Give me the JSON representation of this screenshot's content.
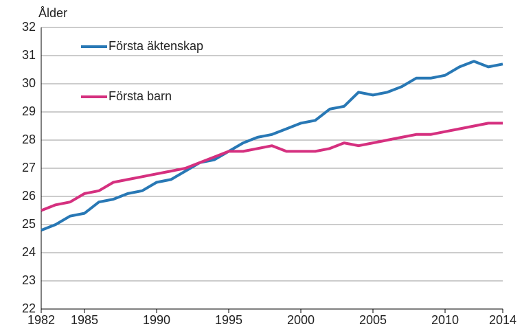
{
  "chart_data": {
    "type": "line",
    "ylabel": "Ålder",
    "x": [
      1982,
      1983,
      1984,
      1985,
      1986,
      1987,
      1988,
      1989,
      1990,
      1991,
      1992,
      1993,
      1994,
      1995,
      1996,
      1997,
      1998,
      1999,
      2000,
      2001,
      2002,
      2003,
      2004,
      2005,
      2006,
      2007,
      2008,
      2009,
      2010,
      2011,
      2012,
      2013,
      2014
    ],
    "series": [
      {
        "name": "Första äktenskap",
        "color": "#2878b5",
        "values": [
          24.8,
          25.0,
          25.3,
          25.4,
          25.8,
          25.9,
          26.1,
          26.2,
          26.5,
          26.6,
          26.9,
          27.2,
          27.3,
          27.6,
          27.9,
          28.1,
          28.2,
          28.4,
          28.6,
          28.7,
          29.1,
          29.2,
          29.7,
          29.6,
          29.7,
          29.9,
          30.2,
          30.2,
          30.3,
          30.6,
          30.8,
          30.6,
          30.7
        ]
      },
      {
        "name": "Första barn",
        "color": "#d5307f",
        "values": [
          25.5,
          25.7,
          25.8,
          26.1,
          26.2,
          26.5,
          26.6,
          26.7,
          26.8,
          26.9,
          27.0,
          27.2,
          27.4,
          27.6,
          27.6,
          27.7,
          27.8,
          27.6,
          27.6,
          27.6,
          27.7,
          27.9,
          27.8,
          27.9,
          28.0,
          28.1,
          28.2,
          28.2,
          28.3,
          28.4,
          28.5,
          28.6,
          28.6
        ]
      }
    ],
    "xlim": [
      1982,
      2014
    ],
    "xticks": [
      1982,
      1985,
      1990,
      1995,
      2000,
      2005,
      2010,
      2014
    ],
    "ylim": [
      22,
      32
    ],
    "yticks": [
      22,
      23,
      24,
      25,
      26,
      27,
      28,
      29,
      30,
      31,
      32
    ],
    "grid": true,
    "legend": "upper left"
  }
}
